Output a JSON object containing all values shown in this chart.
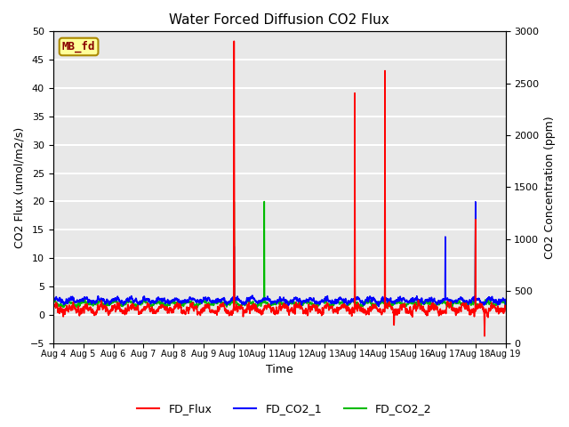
{
  "title": "Water Forced Diffusion CO2 Flux",
  "ylabel_left": "CO2 Flux (umol/m2/s)",
  "ylabel_right": "CO2 Concentration (ppm)",
  "xlabel": "Time",
  "ylim_left": [
    -5,
    50
  ],
  "ylim_right": [
    0,
    3000
  ],
  "yticks_left": [
    -5,
    0,
    5,
    10,
    15,
    20,
    25,
    30,
    35,
    40,
    45,
    50
  ],
  "yticks_right": [
    0,
    500,
    1000,
    1500,
    2000,
    2500,
    3000
  ],
  "xtick_labels": [
    "Aug 4",
    "Aug 5",
    "Aug 6",
    "Aug 7",
    "Aug 8",
    "Aug 9",
    "Aug 10",
    "Aug 11",
    "Aug 12",
    "Aug 13",
    "Aug 14",
    "Aug 15",
    "Aug 16",
    "Aug 17",
    "Aug 18",
    "Aug 19"
  ],
  "legend_box_label": "MB_fd",
  "legend_box_color": "#FFFF99",
  "legend_box_edge_color": "#AA8800",
  "line_colors": {
    "FD_Flux": "#FF0000",
    "FD_CO2_1": "#0000FF",
    "FD_CO2_2": "#00BB00"
  },
  "background_color": "#E8E8E8",
  "grid_color": "#FFFFFF",
  "title_fontsize": 11
}
